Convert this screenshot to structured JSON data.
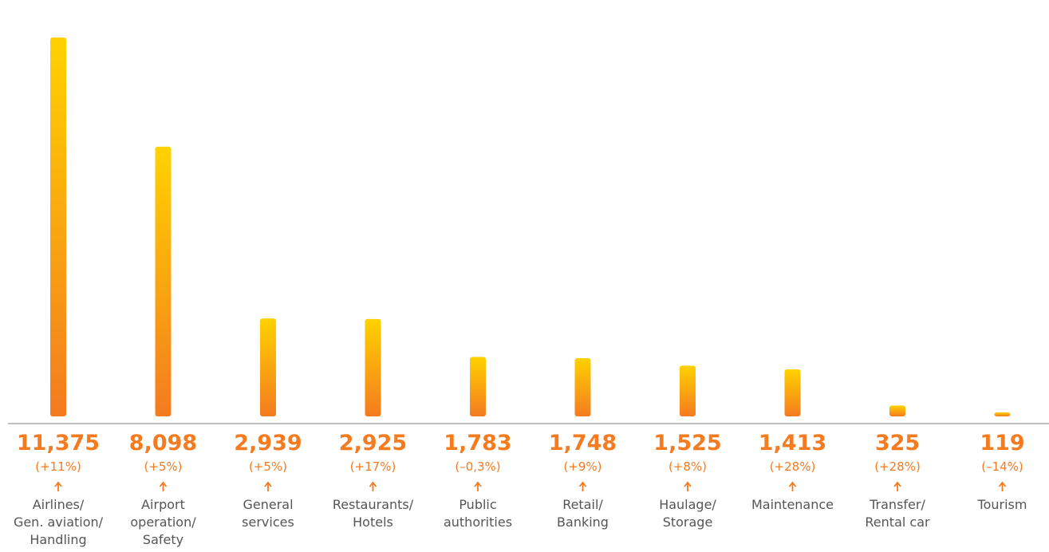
{
  "chart_data": {
    "type": "bar",
    "categories": [
      "Airlines/\nGen. aviation/\nHandling",
      "Airport\noperation/\nSafety",
      "General\nservices",
      "Restaurants/\nHotels",
      "Public\nauthorities",
      "Retail/\nBanking",
      "Haulage/\nStorage",
      "Maintenance",
      "Transfer/\nRental car",
      "Tourism"
    ],
    "values": [
      11375,
      8098,
      2939,
      2925,
      1783,
      1748,
      1525,
      1413,
      325,
      119
    ],
    "value_labels": [
      "11,375",
      "8,098",
      "2,939",
      "2,925",
      "1,783",
      "1,748",
      "1,525",
      "1,413",
      "325",
      "119"
    ],
    "changes": [
      "(+11%)",
      "(+5%)",
      "(+5%)",
      "(+17%)",
      "(–0,3%)",
      "(+9%)",
      "(+8%)",
      "(+28%)",
      "(+28%)",
      "(–14%)"
    ],
    "colors": [
      "#ffd200",
      "#f47b20"
    ],
    "label_color": "#f47b20"
  }
}
